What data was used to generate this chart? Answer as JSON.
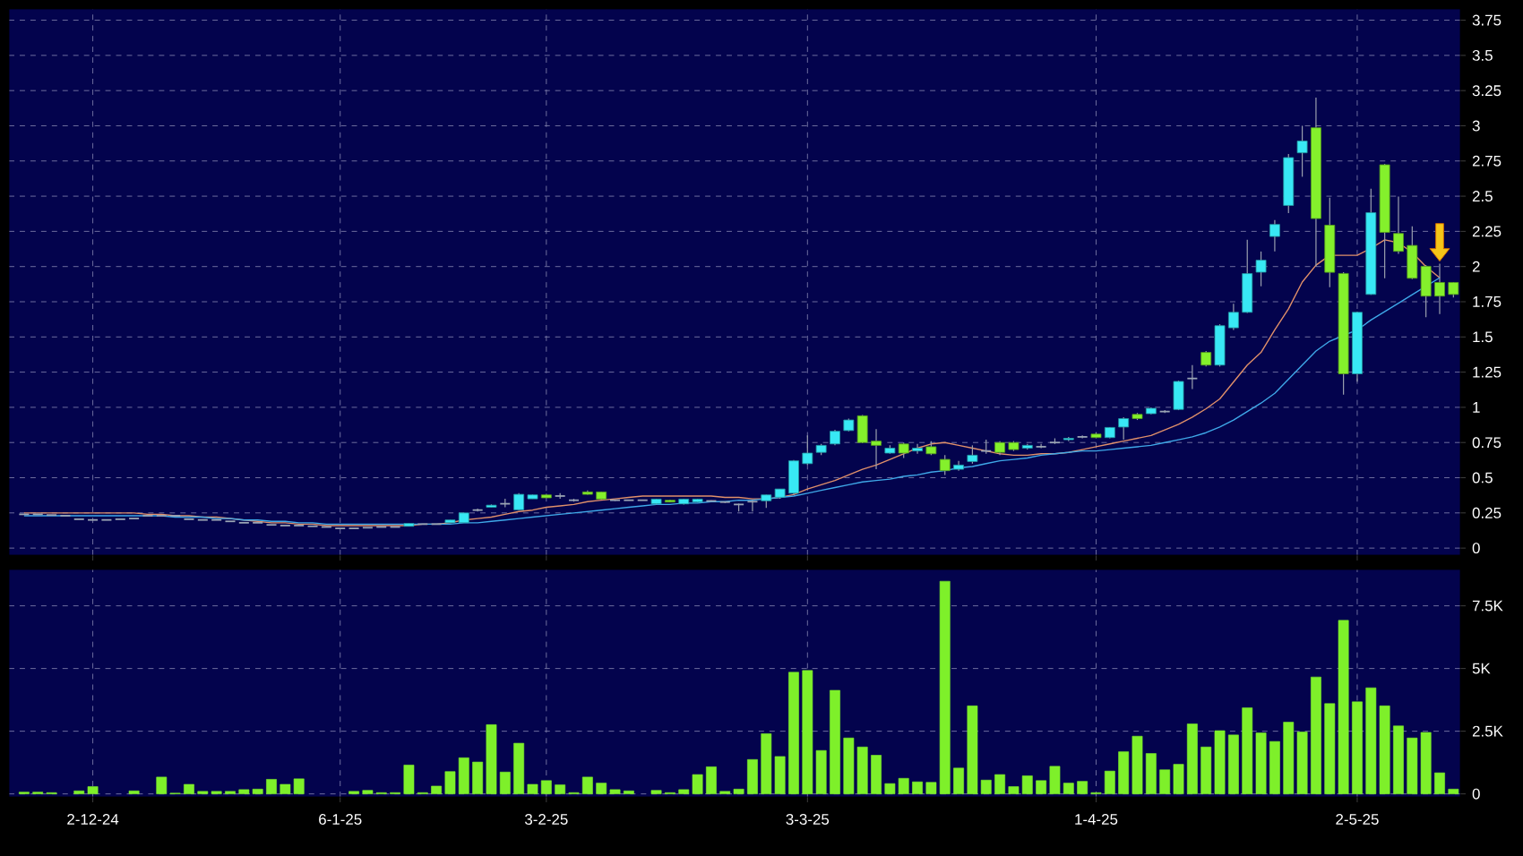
{
  "chart_data": [
    {
      "type": "candlestick",
      "categories": [
        null,
        null,
        null,
        null,
        null,
        null,
        null,
        null,
        null,
        null,
        null,
        null,
        null,
        null,
        null,
        null,
        null,
        null,
        null,
        null,
        null,
        null,
        null,
        null,
        null,
        null,
        null,
        null,
        null,
        null,
        null,
        null,
        null,
        null,
        null,
        null,
        null,
        null,
        null,
        null,
        null,
        null,
        null,
        null,
        null,
        null,
        null,
        null,
        null,
        null,
        null,
        null,
        null,
        null,
        null,
        null,
        null,
        null,
        null,
        null,
        null,
        null,
        null,
        null,
        null,
        null,
        null,
        null,
        null,
        null,
        null,
        null,
        null,
        null,
        null,
        null,
        null,
        null,
        null,
        null,
        null,
        null,
        null,
        null,
        null,
        null,
        null,
        null,
        null,
        null,
        null,
        null,
        null,
        null,
        null,
        null,
        null,
        null,
        null,
        null,
        null,
        null,
        null,
        null,
        null
      ],
      "tick_labels": "y",
      "ohlc": [
        [
          0.24,
          0.24,
          0.24,
          0.24
        ],
        [
          0.24,
          0.24,
          0.24,
          0.24
        ],
        [
          0.235,
          0.235,
          0.235,
          0.235
        ],
        [
          0.23,
          0.23,
          0.23,
          0.23
        ],
        [
          0.205,
          0.205,
          0.205,
          0.205
        ],
        [
          0.2,
          0.2,
          0.2,
          0.2
        ],
        [
          0.2,
          0.2,
          0.2,
          0.2
        ],
        [
          0.205,
          0.205,
          0.205,
          0.205
        ],
        [
          0.21,
          0.21,
          0.21,
          0.21
        ],
        [
          0.23,
          0.23,
          0.23,
          0.23
        ],
        [
          0.23,
          0.23,
          0.23,
          0.23
        ],
        [
          0.23,
          0.23,
          0.23,
          0.23
        ],
        [
          0.205,
          0.205,
          0.205,
          0.205
        ],
        [
          0.2,
          0.2,
          0.2,
          0.2
        ],
        [
          0.2,
          0.2,
          0.2,
          0.2
        ],
        [
          0.19,
          0.19,
          0.19,
          0.19
        ],
        [
          0.18,
          0.18,
          0.18,
          0.18
        ],
        [
          0.18,
          0.18,
          0.18,
          0.18
        ],
        [
          0.165,
          0.165,
          0.165,
          0.165
        ],
        [
          0.16,
          0.16,
          0.16,
          0.16
        ],
        [
          0.16,
          0.16,
          0.16,
          0.16
        ],
        [
          0.155,
          0.155,
          0.155,
          0.155
        ],
        [
          0.15,
          0.15,
          0.15,
          0.15
        ],
        [
          0.14,
          0.14,
          0.14,
          0.14
        ],
        [
          0.14,
          0.14,
          0.14,
          0.14
        ],
        [
          0.145,
          0.145,
          0.145,
          0.145
        ],
        [
          0.15,
          0.15,
          0.15,
          0.15
        ],
        [
          0.15,
          0.15,
          0.15,
          0.15
        ],
        [
          0.155,
          0.175,
          0.155,
          0.175
        ],
        [
          0.17,
          0.17,
          0.17,
          0.17
        ],
        [
          0.17,
          0.17,
          0.17,
          0.17
        ],
        [
          0.18,
          0.2,
          0.18,
          0.2
        ],
        [
          0.18,
          0.25,
          0.18,
          0.25
        ],
        [
          0.27,
          0.28,
          0.26,
          0.27
        ],
        [
          0.29,
          0.31,
          0.29,
          0.305
        ],
        [
          0.315,
          0.35,
          0.29,
          0.315
        ],
        [
          0.272,
          0.39,
          0.27,
          0.382
        ],
        [
          0.35,
          0.38,
          0.35,
          0.378
        ],
        [
          0.378,
          0.385,
          0.355,
          0.357
        ],
        [
          0.37,
          0.39,
          0.35,
          0.37
        ],
        [
          0.34,
          0.35,
          0.33,
          0.34
        ],
        [
          0.399,
          0.41,
          0.38,
          0.382
        ],
        [
          0.399,
          0.4,
          0.345,
          0.348
        ],
        [
          0.34,
          0.345,
          0.335,
          0.34
        ],
        [
          0.34,
          0.34,
          0.34,
          0.34
        ],
        [
          0.34,
          0.34,
          0.34,
          0.34
        ],
        [
          0.314,
          0.35,
          0.31,
          0.348
        ],
        [
          0.34,
          0.345,
          0.325,
          0.327
        ],
        [
          0.314,
          0.35,
          0.31,
          0.348
        ],
        [
          0.327,
          0.35,
          0.325,
          0.348
        ],
        [
          0.335,
          0.34,
          0.33,
          0.335
        ],
        [
          0.327,
          0.33,
          0.32,
          0.327
        ],
        [
          0.31,
          0.315,
          0.26,
          0.31
        ],
        [
          0.33,
          0.34,
          0.26,
          0.33
        ],
        [
          0.336,
          0.38,
          0.285,
          0.378
        ],
        [
          0.361,
          0.42,
          0.35,
          0.42
        ],
        [
          0.39,
          0.625,
          0.38,
          0.62
        ],
        [
          0.6,
          0.8,
          0.59,
          0.675
        ],
        [
          0.68,
          0.74,
          0.66,
          0.73
        ],
        [
          0.74,
          0.84,
          0.73,
          0.83
        ],
        [
          0.835,
          0.92,
          0.83,
          0.91
        ],
        [
          0.94,
          0.945,
          0.745,
          0.75
        ],
        [
          0.76,
          0.845,
          0.56,
          0.73
        ],
        [
          0.675,
          0.73,
          0.67,
          0.71
        ],
        [
          0.74,
          0.75,
          0.64,
          0.675
        ],
        [
          0.69,
          0.74,
          0.67,
          0.71
        ],
        [
          0.72,
          0.76,
          0.66,
          0.67
        ],
        [
          0.63,
          0.66,
          0.52,
          0.55
        ],
        [
          0.56,
          0.62,
          0.55,
          0.59
        ],
        [
          0.615,
          0.73,
          0.6,
          0.66
        ],
        [
          0.69,
          0.77,
          0.67,
          0.69
        ],
        [
          0.75,
          0.76,
          0.66,
          0.68
        ],
        [
          0.75,
          0.76,
          0.69,
          0.7
        ],
        [
          0.71,
          0.74,
          0.7,
          0.73
        ],
        [
          0.72,
          0.74,
          0.71,
          0.72
        ],
        [
          0.75,
          0.78,
          0.74,
          0.75
        ],
        [
          0.77,
          0.79,
          0.76,
          0.78
        ],
        [
          0.79,
          0.8,
          0.78,
          0.79
        ],
        [
          0.81,
          0.82,
          0.78,
          0.785
        ],
        [
          0.785,
          0.86,
          0.78,
          0.857
        ],
        [
          0.86,
          0.93,
          0.77,
          0.92
        ],
        [
          0.95,
          0.96,
          0.91,
          0.92
        ],
        [
          0.955,
          1.0,
          0.95,
          0.993
        ],
        [
          0.97,
          0.98,
          0.96,
          0.97
        ],
        [
          0.985,
          1.19,
          0.98,
          1.184
        ],
        [
          1.205,
          1.3,
          1.13,
          1.205
        ],
        [
          1.39,
          1.4,
          1.29,
          1.3
        ],
        [
          1.3,
          1.59,
          1.29,
          1.58
        ],
        [
          1.565,
          1.735,
          1.55,
          1.675
        ],
        [
          1.675,
          2.19,
          1.67,
          1.95
        ],
        [
          1.96,
          2.107,
          1.86,
          2.045
        ],
        [
          2.214,
          2.33,
          2.107,
          2.299
        ],
        [
          2.434,
          2.8,
          2.38,
          2.774
        ],
        [
          2.808,
          3.0,
          2.638,
          2.892
        ],
        [
          2.986,
          3.2,
          2.002,
          2.341
        ],
        [
          2.294,
          2.49,
          1.853,
          1.959
        ],
        [
          1.951,
          1.96,
          1.09,
          1.238
        ],
        [
          1.238,
          1.68,
          1.183,
          1.675
        ],
        [
          1.802,
          2.553,
          1.8,
          2.383
        ],
        [
          2.723,
          2.73,
          1.917,
          2.243
        ],
        [
          2.235,
          2.498,
          2.09,
          2.108
        ],
        [
          2.15,
          2.286,
          1.91,
          1.917
        ],
        [
          2.002,
          2.01,
          1.641,
          1.79
        ],
        [
          1.887,
          2.02,
          1.663,
          1.79
        ],
        [
          1.887,
          1.89,
          1.78,
          1.802
        ]
      ],
      "colors": [
        "#9aa4b4",
        "#9aa4b4",
        "#9aa4b4",
        "#9aa4b4",
        "#9aa4b4",
        "#9aa4b4",
        "#9aa4b4",
        "#9aa4b4",
        "#9aa4b4",
        "#9aa4b4",
        "#9aa4b4",
        "#9aa4b4",
        "#9aa4b4",
        "#9aa4b4",
        "#9aa4b4",
        "#9aa4b4",
        "#9aa4b4",
        "#9aa4b4",
        "#9aa4b4",
        "#9aa4b4",
        "#9aa4b4",
        "#9aa4b4",
        "#9aa4b4",
        "#9aa4b4",
        "#9aa4b4",
        "#9aa4b4",
        "#9aa4b4",
        "#9aa4b4",
        "#38e8f5",
        "#9aa4b4",
        "#9aa4b4",
        "#38e8f5",
        "#38e8f5",
        "#9aa4b4",
        "#38e8f5",
        "#9aa4b4",
        "#38e8f5",
        "#38e8f5",
        "#84f02c",
        "#9aa4b4",
        "#9aa4b4",
        "#84f02c",
        "#84f02c",
        "#9aa4b4",
        "#9aa4b4",
        "#9aa4b4",
        "#38e8f5",
        "#84f02c",
        "#38e8f5",
        "#38e8f5",
        "#9aa4b4",
        "#9aa4b4",
        "#9aa4b4",
        "#9aa4b4",
        "#38e8f5",
        "#38e8f5",
        "#38e8f5",
        "#38e8f5",
        "#38e8f5",
        "#38e8f5",
        "#38e8f5",
        "#84f02c",
        "#84f02c",
        "#38e8f5",
        "#84f02c",
        "#38e8f5",
        "#84f02c",
        "#84f02c",
        "#38e8f5",
        "#38e8f5",
        "#9aa4b4",
        "#84f02c",
        "#84f02c",
        "#38e8f5",
        "#9aa4b4",
        "#9aa4b4",
        "#38e8f5",
        "#9aa4b4",
        "#84f02c",
        "#38e8f5",
        "#38e8f5",
        "#84f02c",
        "#38e8f5",
        "#9aa4b4",
        "#38e8f5",
        "#9aa4b4",
        "#84f02c",
        "#38e8f5",
        "#38e8f5",
        "#38e8f5",
        "#38e8f5",
        "#38e8f5",
        "#38e8f5",
        "#38e8f5",
        "#84f02c",
        "#84f02c",
        "#84f02c",
        "#38e8f5",
        "#38e8f5",
        "#84f02c",
        "#84f02c",
        "#84f02c",
        "#84f02c",
        "#84f02c",
        "#84f02c"
      ],
      "series": [
        {
          "type": "line",
          "color": "#e0906a",
          "values": [
            0.25,
            0.25,
            0.25,
            0.25,
            0.25,
            0.25,
            0.25,
            0.25,
            0.25,
            0.24,
            0.24,
            0.23,
            0.23,
            0.22,
            0.22,
            0.21,
            0.2,
            0.19,
            0.18,
            0.18,
            0.17,
            0.17,
            0.16,
            0.16,
            0.16,
            0.16,
            0.16,
            0.16,
            0.16,
            0.17,
            0.17,
            0.18,
            0.2,
            0.21,
            0.22,
            0.24,
            0.26,
            0.27,
            0.29,
            0.3,
            0.31,
            0.33,
            0.34,
            0.35,
            0.36,
            0.37,
            0.37,
            0.37,
            0.37,
            0.37,
            0.37,
            0.36,
            0.36,
            0.35,
            0.35,
            0.36,
            0.38,
            0.42,
            0.45,
            0.48,
            0.52,
            0.56,
            0.59,
            0.63,
            0.67,
            0.71,
            0.74,
            0.75,
            0.73,
            0.71,
            0.69,
            0.67,
            0.66,
            0.66,
            0.67,
            0.67,
            0.68,
            0.7,
            0.72,
            0.74,
            0.76,
            0.78,
            0.8,
            0.84,
            0.88,
            0.93,
            0.99,
            1.06,
            1.18,
            1.3,
            1.39,
            1.55,
            1.7,
            1.89,
            2.01,
            2.08,
            2.08,
            2.08,
            2.13,
            2.19,
            2.17,
            2.1,
            2.0,
            1.92,
            null
          ]
        },
        {
          "type": "line",
          "color": "#3fa8e8",
          "values": [
            0.23,
            0.23,
            0.23,
            0.23,
            0.23,
            0.23,
            0.23,
            0.23,
            0.23,
            0.23,
            0.23,
            0.22,
            0.22,
            0.22,
            0.21,
            0.21,
            0.2,
            0.2,
            0.19,
            0.19,
            0.18,
            0.18,
            0.17,
            0.17,
            0.17,
            0.17,
            0.17,
            0.17,
            0.17,
            0.17,
            0.17,
            0.17,
            0.18,
            0.18,
            0.19,
            0.2,
            0.21,
            0.22,
            0.23,
            0.24,
            0.25,
            0.26,
            0.27,
            0.28,
            0.29,
            0.3,
            0.31,
            0.31,
            0.32,
            0.32,
            0.33,
            0.33,
            0.34,
            0.34,
            0.35,
            0.36,
            0.37,
            0.39,
            0.41,
            0.43,
            0.45,
            0.47,
            0.48,
            0.49,
            0.51,
            0.52,
            0.54,
            0.55,
            0.57,
            0.58,
            0.6,
            0.62,
            0.63,
            0.64,
            0.66,
            0.67,
            0.68,
            0.69,
            0.69,
            0.7,
            0.71,
            0.72,
            0.73,
            0.75,
            0.77,
            0.79,
            0.82,
            0.86,
            0.91,
            0.97,
            1.03,
            1.1,
            1.2,
            1.3,
            1.4,
            1.47,
            1.51,
            1.55,
            1.62,
            1.68,
            1.74,
            1.8,
            1.86,
            1.92,
            null
          ]
        }
      ],
      "ylim": [
        -0.05,
        3.83
      ],
      "yticks": [
        0,
        0.25,
        0.5,
        0.75,
        1,
        1.25,
        1.5,
        1.75,
        2,
        2.25,
        2.5,
        2.75,
        3,
        3.25,
        3.5,
        3.75
      ],
      "grid": true
    },
    {
      "type": "bar",
      "categories": [
        null,
        null,
        null,
        null,
        null,
        "2-12-24",
        null,
        null,
        null,
        null,
        null,
        null,
        null,
        null,
        null,
        null,
        null,
        null,
        null,
        null,
        null,
        null,
        null,
        "6-1-25",
        null,
        null,
        null,
        null,
        null,
        null,
        null,
        null,
        null,
        null,
        null,
        null,
        null,
        null,
        "3-2-25",
        null,
        null,
        null,
        null,
        null,
        null,
        null,
        null,
        null,
        null,
        null,
        null,
        null,
        null,
        null,
        null,
        null,
        null,
        "3-3-25",
        null,
        null,
        null,
        null,
        null,
        null,
        null,
        null,
        null,
        null,
        null,
        null,
        null,
        null,
        null,
        null,
        null,
        null,
        null,
        null,
        "1-4-25",
        null,
        null,
        null,
        null,
        null,
        null,
        null,
        null,
        null,
        null,
        null,
        null,
        null,
        null,
        null,
        null,
        null,
        null,
        "2-5-25",
        null,
        null,
        null,
        null,
        null,
        null,
        null
      ],
      "values": [
        70,
        70,
        50,
        null,
        120,
        290,
        null,
        null,
        120,
        null,
        670,
        30,
        380,
        100,
        100,
        100,
        170,
        190,
        580,
        380,
        600,
        null,
        null,
        null,
        100,
        140,
        50,
        50,
        1150,
        50,
        310,
        890,
        1440,
        1270,
        2760,
        870,
        2020,
        380,
        530,
        360,
        50,
        670,
        430,
        170,
        120,
        null,
        140,
        50,
        170,
        770,
        1080,
        100,
        190,
        1370,
        2400,
        1490,
        4850,
        4920,
        1730,
        4130,
        2230,
        1870,
        1540,
        410,
        620,
        480,
        460,
        8480,
        1030,
        3510,
        550,
        770,
        290,
        720,
        530,
        1100,
        430,
        500,
        50,
        910,
        1680,
        2300,
        1610,
        960,
        1180,
        2790,
        1870,
        2520,
        2350,
        3430,
        2430,
        2090,
        2860,
        2470,
        4660,
        3600,
        6920,
        3670,
        4230,
        3510,
        2710,
        2230,
        2450,
        840,
        190
      ],
      "color": "#7ef02a",
      "ylim": [
        -120,
        8950
      ],
      "yticks": [
        0,
        {
          "value": 2500,
          "label": "2.5K"
        },
        {
          "value": 5000,
          "label": "5K"
        },
        {
          "value": 7500,
          "label": "7.5K"
        }
      ],
      "grid": true
    }
  ]
}
